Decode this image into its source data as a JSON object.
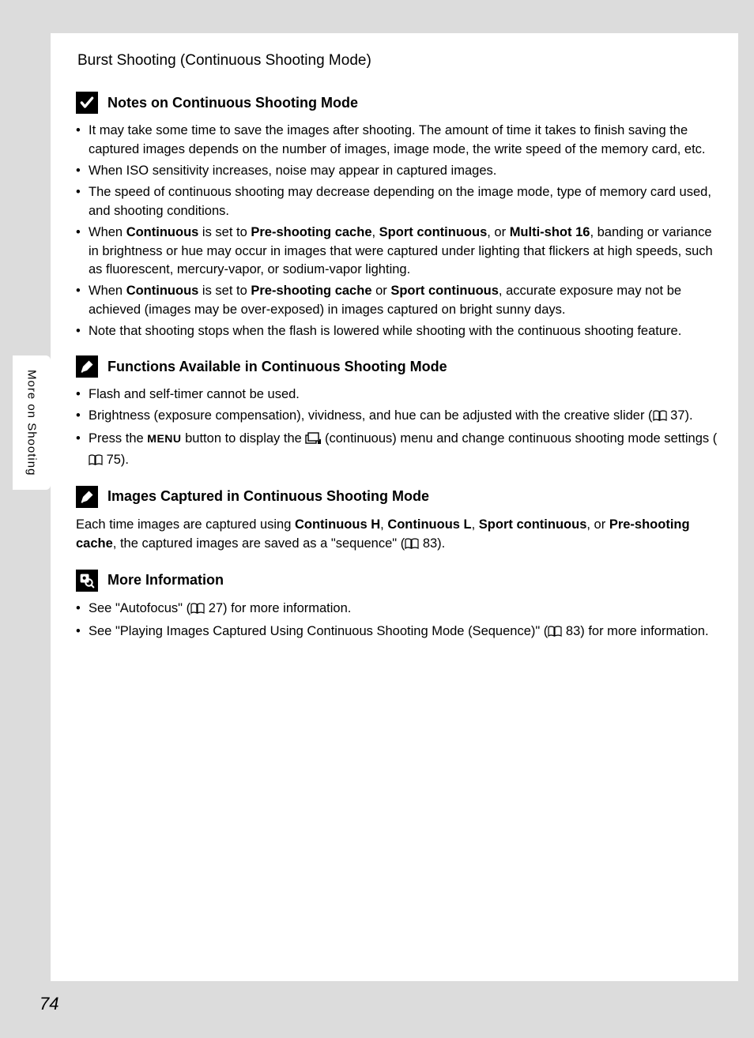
{
  "page": {
    "title": "Burst Shooting (Continuous Shooting Mode)",
    "sideTab": "More on Shooting",
    "pageNumber": "74"
  },
  "sections": [
    {
      "icon": "checkmark",
      "title": "Notes on Continuous Shooting Mode",
      "items": [
        {
          "type": "plain",
          "text": "It may take some time to save the images after shooting. The amount of time it takes to finish saving the captured images depends on the number of images, image mode, the write speed of the memory card, etc."
        },
        {
          "type": "plain",
          "text": "When ISO sensitivity increases, noise may appear in captured images."
        },
        {
          "type": "plain",
          "text": "The speed of continuous shooting may decrease depending on the image mode, type of memory card used, and shooting conditions."
        },
        {
          "type": "rich",
          "parts": [
            {
              "t": "When "
            },
            {
              "b": "Continuous"
            },
            {
              "t": " is set to "
            },
            {
              "b": "Pre-shooting cache"
            },
            {
              "t": ", "
            },
            {
              "b": "Sport continuous"
            },
            {
              "t": ", or "
            },
            {
              "b": "Multi-shot 16"
            },
            {
              "t": ", banding or variance in brightness or hue may occur in images that were captured under lighting that flickers at high speeds, such as fluorescent, mercury-vapor, or sodium-vapor lighting."
            }
          ]
        },
        {
          "type": "rich",
          "parts": [
            {
              "t": "When "
            },
            {
              "b": "Continuous"
            },
            {
              "t": " is set to "
            },
            {
              "b": "Pre-shooting cache"
            },
            {
              "t": " or "
            },
            {
              "b": "Sport continuous"
            },
            {
              "t": ", accurate exposure may not be achieved (images may be over-exposed) in images captured on bright sunny days."
            }
          ]
        },
        {
          "type": "plain",
          "text": "Note that shooting stops when the flash is lowered while shooting with the continuous shooting feature."
        }
      ]
    },
    {
      "icon": "pencil",
      "title": "Functions Available in Continuous Shooting Mode",
      "items": [
        {
          "type": "plain",
          "text": "Flash and self-timer cannot be used."
        },
        {
          "type": "rich",
          "parts": [
            {
              "t": "Brightness (exposure compensation), vividness, and hue can be adjusted with the creative slider ("
            },
            {
              "book": true
            },
            {
              "t": " 37)."
            }
          ]
        },
        {
          "type": "rich",
          "parts": [
            {
              "t": "Press the "
            },
            {
              "menu": "MENU"
            },
            {
              "t": " button to display the "
            },
            {
              "cont": true
            },
            {
              "t": " (continuous) menu and change continuous shooting mode settings ("
            },
            {
              "book": true
            },
            {
              "t": " 75)."
            }
          ]
        }
      ]
    },
    {
      "icon": "pencil",
      "title": "Images Captured in Continuous Shooting Mode",
      "para": {
        "parts": [
          {
            "t": "Each time images are captured using "
          },
          {
            "b": "Continuous H"
          },
          {
            "t": ", "
          },
          {
            "b": "Continuous L"
          },
          {
            "t": ", "
          },
          {
            "b": "Sport continuous"
          },
          {
            "t": ", or "
          },
          {
            "b": "Pre-shooting cache"
          },
          {
            "t": ", the captured images are saved as a \"sequence\" ("
          },
          {
            "book": true
          },
          {
            "t": " 83)."
          }
        ]
      }
    },
    {
      "icon": "search",
      "title": "More Information",
      "items": [
        {
          "type": "rich",
          "parts": [
            {
              "t": "See \"Autofocus\" ("
            },
            {
              "book": true
            },
            {
              "t": " 27) for more information."
            }
          ]
        },
        {
          "type": "rich",
          "parts": [
            {
              "t": "See \"Playing Images Captured Using Continuous Shooting Mode (Sequence)\" ("
            },
            {
              "book": true
            },
            {
              "t": " 83) for more information."
            }
          ]
        }
      ]
    }
  ]
}
